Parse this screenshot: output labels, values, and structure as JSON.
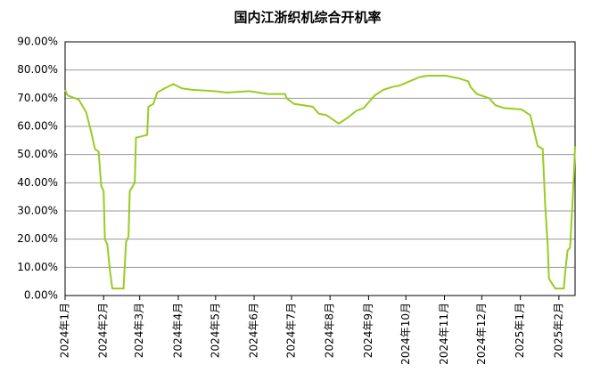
{
  "chart_data": {
    "type": "line",
    "title": "国内江浙织机综合开机率",
    "x": [
      0,
      2,
      11,
      17,
      21,
      24,
      27,
      29,
      31,
      32,
      34,
      36,
      38,
      47,
      49,
      51,
      52,
      56,
      57,
      62,
      66,
      67,
      71,
      74,
      80,
      87,
      94,
      102,
      120,
      130,
      148,
      163,
      177,
      178,
      184,
      199,
      204,
      210,
      220,
      227,
      234,
      240,
      249,
      256,
      263,
      269,
      285,
      292,
      306,
      317,
      324,
      326,
      331,
      341,
      346,
      353,
      367,
      374,
      380,
      384,
      386,
      388,
      389,
      394,
      401,
      402,
      404,
      406,
      407,
      409,
      410
    ],
    "series": [
      {
        "name": "开机率",
        "color": "#99cc22",
        "values": [
          73,
          71,
          69.5,
          65,
          58,
          52,
          51,
          39,
          37,
          20,
          18,
          9,
          2.5,
          2.5,
          19,
          21,
          37,
          40,
          56,
          56.5,
          57,
          67,
          68,
          72,
          73.5,
          75,
          73.5,
          73,
          72.5,
          72,
          72.5,
          71.5,
          71.5,
          70,
          68,
          67,
          64.5,
          64,
          61,
          63,
          65.5,
          66.5,
          71,
          73,
          74,
          74.5,
          77.5,
          78,
          78,
          77,
          76,
          74,
          71.5,
          70,
          67.5,
          66.5,
          66,
          64,
          53,
          52,
          32,
          18,
          6,
          2.5,
          2.5,
          8,
          16,
          17,
          25,
          42,
          53
        ]
      }
    ],
    "xlim": [
      0,
      410
    ],
    "xticks": [
      {
        "value": 0,
        "label": "2024年1月"
      },
      {
        "value": 31,
        "label": "2024年2月"
      },
      {
        "value": 60,
        "label": "2024年3月"
      },
      {
        "value": 91,
        "label": "2024年4月"
      },
      {
        "value": 121,
        "label": "2024年5月"
      },
      {
        "value": 152,
        "label": "2024年6月"
      },
      {
        "value": 182,
        "label": "2024年7月"
      },
      {
        "value": 213,
        "label": "2024年8月"
      },
      {
        "value": 244,
        "label": "2024年9月"
      },
      {
        "value": 274,
        "label": "2024年10月"
      },
      {
        "value": 305,
        "label": "2024年11月"
      },
      {
        "value": 335,
        "label": "2024年12月"
      },
      {
        "value": 366,
        "label": "2025年1月"
      },
      {
        "value": 397,
        "label": "2025年2月"
      }
    ],
    "ylim": [
      0,
      90
    ],
    "yticks": [
      {
        "value": 0,
        "label": "0.00%"
      },
      {
        "value": 10,
        "label": "10.00%"
      },
      {
        "value": 20,
        "label": "20.00%"
      },
      {
        "value": 30,
        "label": "30.00%"
      },
      {
        "value": 40,
        "label": "40.00%"
      },
      {
        "value": 50,
        "label": "50.00%"
      },
      {
        "value": 60,
        "label": "60.00%"
      },
      {
        "value": 70,
        "label": "70.00%"
      },
      {
        "value": 80,
        "label": "80.00%"
      },
      {
        "value": 90,
        "label": "90.00%"
      }
    ],
    "grid": true
  }
}
